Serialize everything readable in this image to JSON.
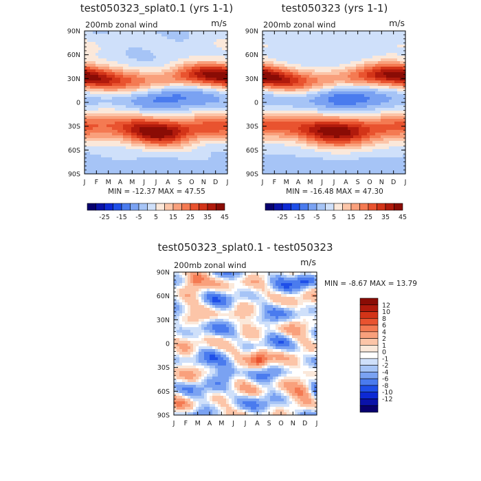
{
  "colors": {
    "main_ramp": [
      "#08006e",
      "#0a12a8",
      "#0d29d4",
      "#1f4fe8",
      "#4a7bee",
      "#7aa2f2",
      "#a6c4f6",
      "#cfe0fa",
      "#fbe8da",
      "#fcc5a8",
      "#f9a07c",
      "#f47a52",
      "#e9532f",
      "#d33418",
      "#b01a0c",
      "#8a0c05"
    ],
    "diff_ramp": [
      "#08006e",
      "#0a12a8",
      "#0d29d4",
      "#1f4fe8",
      "#4a7bee",
      "#7aa2f2",
      "#a6c4f6",
      "#cfe0fa",
      "#ffffff",
      "#fbe8da",
      "#fcc5a8",
      "#f9a07c",
      "#f47a52",
      "#e9532f",
      "#d33418",
      "#b01a0c",
      "#8a0c05"
    ]
  },
  "chart_data": [
    {
      "type": "heatmap",
      "title": "test050323_splat0.1 (yrs 1-1)",
      "subtitle_left": "200mb zonal wind",
      "subtitle_right": "m/s",
      "x_ticks": [
        "J",
        "F",
        "M",
        "A",
        "M",
        "J",
        "J",
        "A",
        "S",
        "O",
        "N",
        "D",
        "J"
      ],
      "y_ticks": [
        "90N",
        "60N",
        "30N",
        "0",
        "30S",
        "60S",
        "90S"
      ],
      "xlim": [
        0,
        12
      ],
      "ylim": [
        -90,
        90
      ],
      "stats": "MIN = -12.37 MAX =  47.55",
      "min": -12.37,
      "max": 47.55,
      "levels": [
        -30,
        -25,
        -20,
        -15,
        -10,
        -5,
        0,
        5,
        10,
        15,
        20,
        25,
        30,
        35,
        40,
        45
      ],
      "colorbar_labels": [
        "-25",
        "-15",
        "-5",
        "5",
        "15",
        "25",
        "35",
        "45"
      ],
      "field": "zonal_wind_v1"
    },
    {
      "type": "heatmap",
      "title": "test050323 (yrs 1-1)",
      "subtitle_left": "200mb zonal wind",
      "subtitle_right": "m/s",
      "x_ticks": [
        "J",
        "F",
        "M",
        "A",
        "M",
        "J",
        "J",
        "A",
        "S",
        "O",
        "N",
        "D",
        "J"
      ],
      "y_ticks": [
        "90N",
        "60N",
        "30N",
        "0",
        "30S",
        "60S",
        "90S"
      ],
      "xlim": [
        0,
        12
      ],
      "ylim": [
        -90,
        90
      ],
      "stats": "MIN = -16.48 MAX =  47.30",
      "min": -16.48,
      "max": 47.3,
      "levels": [
        -30,
        -25,
        -20,
        -15,
        -10,
        -5,
        0,
        5,
        10,
        15,
        20,
        25,
        30,
        35,
        40,
        45
      ],
      "colorbar_labels": [
        "-25",
        "-15",
        "-5",
        "5",
        "15",
        "25",
        "35",
        "45"
      ],
      "field": "zonal_wind_v2"
    },
    {
      "type": "heatmap",
      "title": "test050323_splat0.1 - test050323",
      "subtitle_left": "200mb zonal wind",
      "subtitle_right": "m/s",
      "x_ticks": [
        "J",
        "F",
        "M",
        "A",
        "M",
        "J",
        "J",
        "A",
        "S",
        "O",
        "N",
        "D",
        "J"
      ],
      "y_ticks": [
        "90N",
        "60N",
        "30N",
        "0",
        "30S",
        "60S",
        "90S"
      ],
      "xlim": [
        0,
        12
      ],
      "ylim": [
        -90,
        90
      ],
      "stats": "MIN =  -8.67 MAX =  13.79",
      "min": -8.67,
      "max": 13.79,
      "levels": [
        -12,
        -10,
        -8,
        -6,
        -4,
        -2,
        -1,
        0,
        1,
        2,
        4,
        6,
        8,
        10,
        12
      ],
      "colorbar_labels": [
        "12",
        "10",
        "8",
        "6",
        "4",
        "2",
        "1",
        "0",
        "-1",
        "-2",
        "-4",
        "-6",
        "-8",
        "-10",
        "-12"
      ],
      "field": "difference"
    }
  ]
}
